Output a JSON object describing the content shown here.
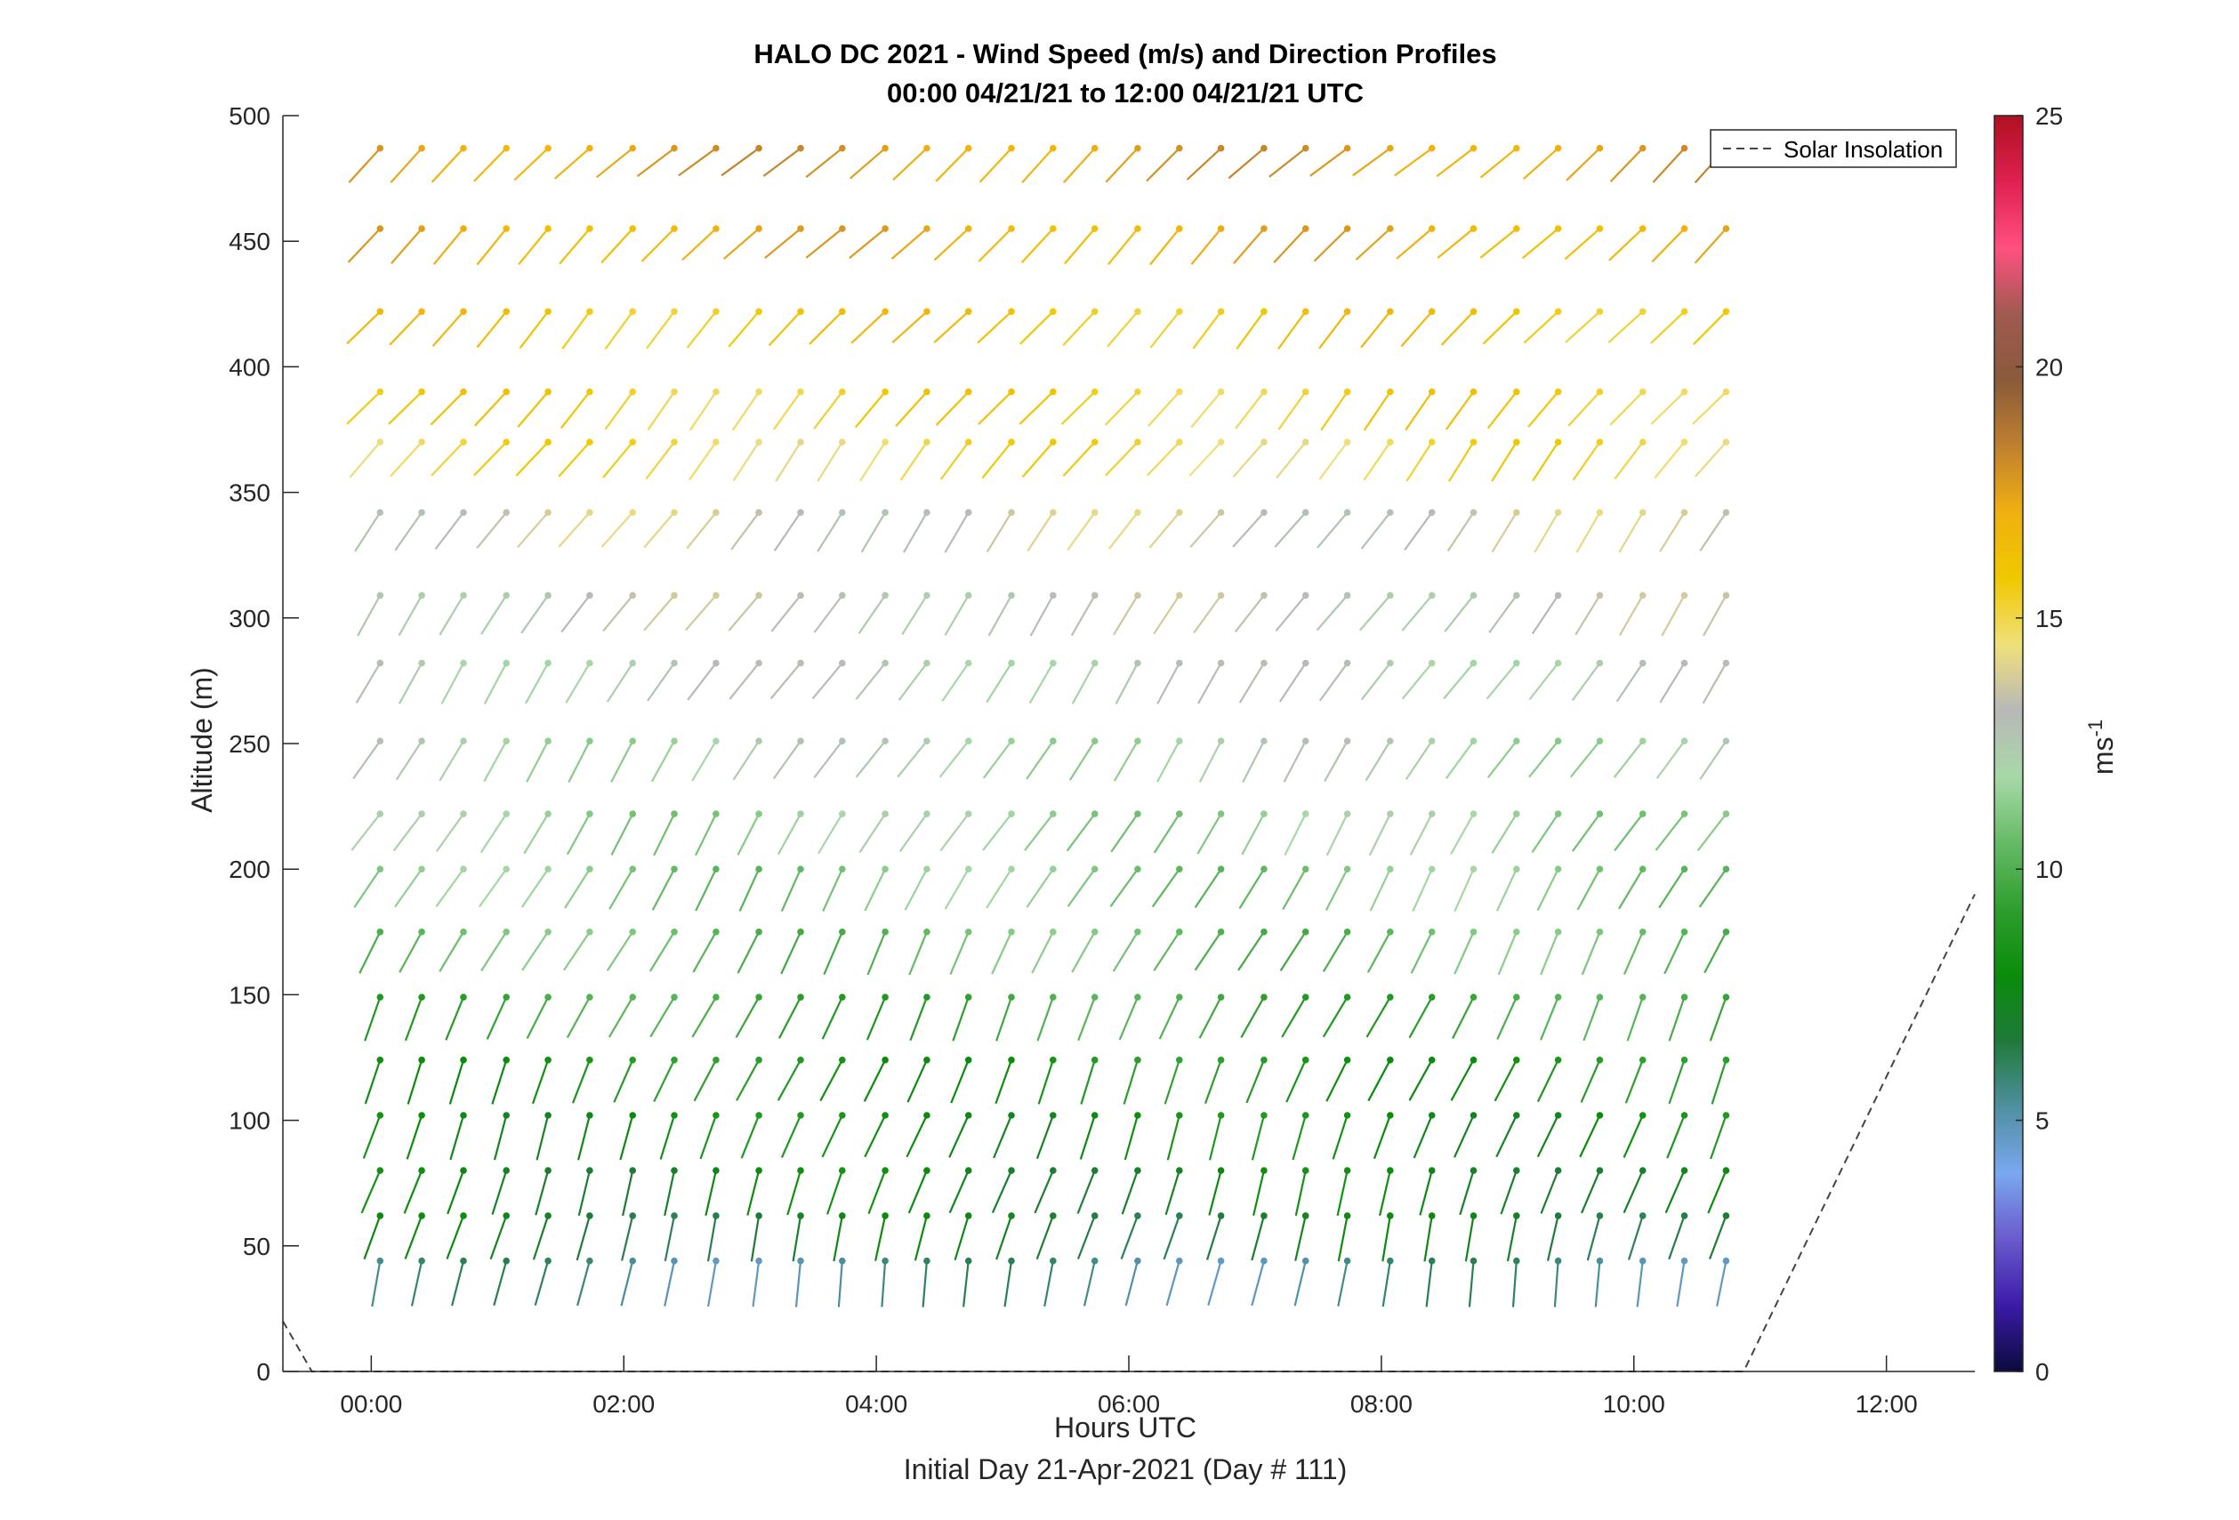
{
  "chart_data": {
    "type": "quiver",
    "title": "HALO DC 2021 - Wind Speed (m/s) and Direction Profiles",
    "subtitle": "00:00 04/21/21 to 12:00 04/21/21  UTC",
    "xlabel": "Hours UTC",
    "xlabel2": "Initial Day 21-Apr-2021 (Day # 111)",
    "ylabel": "Altitude (m)",
    "xlim": [
      -0.7,
      12.7
    ],
    "ylim": [
      0,
      500
    ],
    "xticks": [
      0,
      2,
      4,
      6,
      8,
      10,
      12
    ],
    "xtick_labels": [
      "00:00",
      "02:00",
      "04:00",
      "06:00",
      "08:00",
      "10:00",
      "12:00"
    ],
    "yticks": [
      0,
      50,
      100,
      150,
      200,
      250,
      300,
      350,
      400,
      450,
      500
    ],
    "ytick_labels": [
      "0",
      "50",
      "100",
      "150",
      "200",
      "250",
      "300",
      "350",
      "400",
      "450",
      "500"
    ],
    "time_hours": [
      0.07,
      0.4,
      0.73,
      1.07,
      1.4,
      1.73,
      2.07,
      2.4,
      2.73,
      3.07,
      3.4,
      3.73,
      4.07,
      4.4,
      4.73,
      5.07,
      5.4,
      5.73,
      6.07,
      6.4,
      6.73,
      7.07,
      7.4,
      7.73,
      8.07,
      8.4,
      8.73,
      9.07,
      9.4,
      9.73,
      10.07,
      10.4,
      10.73
    ],
    "altitudes_m": [
      44,
      62,
      80,
      102,
      124,
      149,
      175,
      200,
      222,
      251,
      282,
      309,
      342,
      370,
      390,
      422,
      455,
      487
    ],
    "speed_by_altitude_ms": [
      5.5,
      7.0,
      7.5,
      8.0,
      8.5,
      9.5,
      10.5,
      11.0,
      11.5,
      12.0,
      12.5,
      13.0,
      13.5,
      15.0,
      15.5,
      16.0,
      17.0,
      17.5
    ],
    "direction_from_deg_by_altitude": [
      190,
      195,
      198,
      200,
      203,
      205,
      208,
      210,
      212,
      213,
      214,
      215,
      216,
      218,
      220,
      222,
      225,
      228
    ],
    "colorbar": {
      "label": "ms",
      "label_superscript": "-1",
      "limits": [
        0,
        25
      ],
      "ticks": [
        0,
        5,
        10,
        15,
        20,
        25
      ],
      "tick_labels": [
        "0",
        "5",
        "10",
        "15",
        "20",
        "25"
      ],
      "colors": [
        "#0b0b3d",
        "#3b1aa8",
        "#6a5acd",
        "#7aa8f0",
        "#4f8fa0",
        "#1f7a3a",
        "#0a8c0a",
        "#2e9e2e",
        "#66bb66",
        "#a8d8a8",
        "#b8b8b8",
        "#f0e07a",
        "#f0c800",
        "#f0b010",
        "#c08030",
        "#8a5a3a",
        "#a05a50",
        "#ff5080",
        "#e02050",
        "#b01020"
      ]
    },
    "legend": {
      "entries": [
        "Solar Insolation"
      ],
      "placement": "top-right"
    },
    "solar_insolation": {
      "x_hours": [
        -0.7,
        -0.47,
        10.87,
        12.7
      ],
      "y": [
        20,
        0,
        0,
        190
      ],
      "style": "dashed"
    }
  }
}
